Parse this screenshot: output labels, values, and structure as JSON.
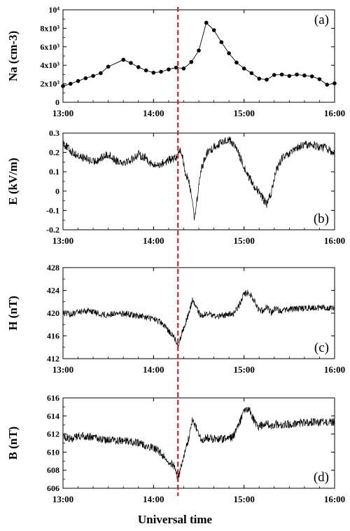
{
  "figure": {
    "xlabel": "Universal time",
    "event_line_time": 14.27,
    "event_line_color": "#e31a1c",
    "trace_color": "#000000"
  },
  "chart_data": [
    {
      "type": "line",
      "panel_label": "(a)",
      "ylabel": "Na (cm-3)",
      "x_unit": "hour UT",
      "xlim": [
        13,
        16
      ],
      "xticks": [
        13,
        14,
        15,
        16
      ],
      "xtick_labels": [
        "13:00",
        "14:00",
        "15:00",
        "16:00"
      ],
      "ylim": [
        0,
        10000
      ],
      "yticks": [
        0,
        2000,
        4000,
        6000,
        8000,
        10000
      ],
      "ytick_labels": [
        "0",
        "2x10³",
        "4x10³",
        "6x10³",
        "8x10³",
        "10⁴"
      ],
      "markers": true,
      "x": [
        13.0,
        13.083,
        13.167,
        13.25,
        13.333,
        13.417,
        13.5,
        13.667,
        13.75,
        13.833,
        13.917,
        14.0,
        14.083,
        14.167,
        14.25,
        14.333,
        14.417,
        14.5,
        14.583,
        14.667,
        14.75,
        14.833,
        14.917,
        15.0,
        15.083,
        15.167,
        15.25,
        15.333,
        15.417,
        15.5,
        15.583,
        15.667,
        15.75,
        15.833,
        15.917,
        16.0
      ],
      "y": [
        1750,
        2000,
        2300,
        2600,
        2850,
        3150,
        3850,
        4600,
        4250,
        3800,
        3450,
        3200,
        3300,
        3550,
        3750,
        3650,
        4350,
        5600,
        8600,
        7800,
        6500,
        5300,
        4300,
        3650,
        3150,
        2550,
        2450,
        2950,
        3000,
        2850,
        3000,
        2900,
        2800,
        2500,
        1900,
        2050
      ]
    },
    {
      "type": "line",
      "panel_label": "(b)",
      "ylabel": "E (kV/m)",
      "x_unit": "hour UT",
      "xlim": [
        13,
        16
      ],
      "xticks": [
        13,
        14,
        15,
        16
      ],
      "xtick_labels": [
        "13:00",
        "14:00",
        "15:00",
        "16:00"
      ],
      "ylim": [
        -0.2,
        0.3
      ],
      "yticks": [
        -0.2,
        -0.1,
        0,
        0.1,
        0.2,
        0.3
      ],
      "ytick_labels": [
        "-0.2",
        "-0.1",
        "0",
        "0.1",
        "0.2",
        "0.3"
      ],
      "noise": 0.022,
      "x": [
        13.0,
        13.08,
        13.17,
        13.25,
        13.33,
        13.42,
        13.5,
        13.58,
        13.67,
        13.75,
        13.83,
        13.92,
        14.0,
        14.08,
        14.17,
        14.25,
        14.3,
        14.35,
        14.4,
        14.43,
        14.45,
        14.48,
        14.52,
        14.58,
        14.67,
        14.75,
        14.83,
        14.92,
        15.0,
        15.08,
        15.15,
        15.2,
        15.25,
        15.3,
        15.35,
        15.42,
        15.5,
        15.58,
        15.67,
        15.75,
        15.83,
        15.92,
        16.0
      ],
      "y": [
        0.25,
        0.21,
        0.18,
        0.17,
        0.15,
        0.17,
        0.19,
        0.16,
        0.15,
        0.16,
        0.19,
        0.17,
        0.13,
        0.14,
        0.16,
        0.17,
        0.22,
        0.1,
        0.03,
        -0.05,
        -0.14,
        -0.05,
        0.1,
        0.19,
        0.23,
        0.25,
        0.27,
        0.22,
        0.12,
        0.05,
        0.0,
        -0.03,
        -0.07,
        -0.01,
        0.1,
        0.17,
        0.19,
        0.22,
        0.24,
        0.24,
        0.23,
        0.22,
        0.19
      ]
    },
    {
      "type": "line",
      "panel_label": "(c)",
      "ylabel": "H (nT)",
      "x_unit": "hour UT",
      "xlim": [
        13,
        16
      ],
      "xticks": [
        13,
        14,
        15,
        16
      ],
      "xtick_labels": [
        "13:00",
        "14:00",
        "15:00",
        "16:00"
      ],
      "ylim": [
        412,
        428
      ],
      "yticks": [
        412,
        416,
        420,
        424,
        428
      ],
      "ytick_labels": [
        "412",
        "416",
        "420",
        "424",
        "428"
      ],
      "noise": 0.55,
      "x": [
        13.0,
        13.1,
        13.2,
        13.3,
        13.4,
        13.5,
        13.6,
        13.7,
        13.8,
        13.9,
        14.0,
        14.08,
        14.15,
        14.22,
        14.27,
        14.32,
        14.38,
        14.43,
        14.47,
        14.52,
        14.6,
        14.7,
        14.8,
        14.88,
        14.95,
        15.0,
        15.05,
        15.1,
        15.15,
        15.2,
        15.25,
        15.3,
        15.35,
        15.4,
        15.5,
        15.6,
        15.7,
        15.8,
        15.9,
        16.0
      ],
      "y": [
        420.0,
        419.8,
        420.3,
        420.5,
        419.8,
        419.7,
        420.0,
        419.9,
        419.6,
        419.3,
        419.0,
        418.3,
        417.2,
        416.0,
        414.3,
        416.8,
        419.5,
        422.3,
        421.0,
        419.6,
        419.9,
        419.4,
        419.7,
        419.9,
        421.5,
        423.4,
        423.6,
        422.6,
        420.8,
        420.4,
        421.2,
        420.1,
        421.0,
        420.3,
        420.7,
        420.8,
        420.9,
        420.9,
        421.0,
        420.8
      ]
    },
    {
      "type": "line",
      "panel_label": "(d)",
      "ylabel": "B (nT)",
      "x_unit": "hour UT",
      "xlim": [
        13,
        16
      ],
      "xticks": [
        13,
        14,
        15,
        16
      ],
      "xtick_labels": [
        "13:00",
        "14:00",
        "15:00",
        "16:00"
      ],
      "ylim": [
        606,
        616
      ],
      "yticks": [
        606,
        608,
        610,
        612,
        614,
        616
      ],
      "ytick_labels": [
        "606",
        "608",
        "610",
        "612",
        "614",
        "616"
      ],
      "noise": 0.45,
      "x": [
        13.0,
        13.1,
        13.2,
        13.3,
        13.4,
        13.5,
        13.6,
        13.7,
        13.8,
        13.9,
        14.0,
        14.08,
        14.15,
        14.22,
        14.27,
        14.32,
        14.38,
        14.43,
        14.47,
        14.52,
        14.6,
        14.7,
        14.8,
        14.88,
        14.95,
        15.0,
        15.05,
        15.1,
        15.15,
        15.2,
        15.25,
        15.3,
        15.35,
        15.4,
        15.5,
        15.6,
        15.7,
        15.8,
        15.9,
        16.0
      ],
      "y": [
        611.7,
        611.5,
        611.8,
        611.7,
        611.5,
        611.3,
        611.3,
        611.2,
        611.1,
        610.8,
        610.5,
        609.9,
        609.2,
        608.6,
        607.1,
        609.0,
        611.2,
        613.6,
        612.7,
        611.4,
        611.6,
        611.4,
        611.5,
        611.7,
        613.2,
        614.6,
        614.9,
        613.7,
        612.7,
        613.0,
        613.2,
        612.9,
        613.1,
        613.0,
        613.1,
        613.2,
        613.3,
        613.3,
        613.4,
        613.3
      ]
    }
  ]
}
